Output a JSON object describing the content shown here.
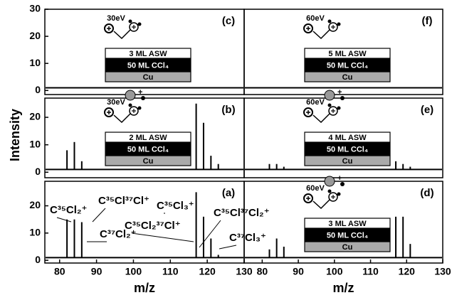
{
  "chart_data": [
    {
      "type": "spectrum",
      "panel_label": "(c)",
      "energy": "30eV",
      "layers": [
        "3 ML ASW",
        "50 ML CCl₄",
        "Cu"
      ],
      "xlim": [
        76,
        130
      ],
      "ylim": [
        -1.5,
        30
      ],
      "yticks": [
        0,
        10,
        20,
        30
      ],
      "baseline": 1,
      "series": [
        {
          "color": "#000000",
          "x": [],
          "values": []
        }
      ]
    },
    {
      "type": "spectrum",
      "panel_label": "(f)",
      "energy": "60eV",
      "layers": [
        "5 ML ASW",
        "50 ML CCl₄",
        "Cu"
      ],
      "xlim": [
        75,
        130
      ],
      "ylim": [
        -1.5,
        30
      ],
      "baseline": 1,
      "series": [
        {
          "color": "#000000",
          "x": [],
          "values": []
        }
      ]
    },
    {
      "type": "spectrum",
      "panel_label": "(b)",
      "energy": "30eV",
      "layers": [
        "2 ML ASW",
        "50 ML CCl₄",
        "Cu"
      ],
      "ylabel": "Intensity",
      "xlim": [
        76,
        130
      ],
      "ylim": [
        -2,
        27
      ],
      "yticks": [
        0,
        10,
        20
      ],
      "baseline": 1,
      "series": [
        {
          "color": "#000000",
          "x": [
            82,
            84,
            86,
            117,
            119,
            121,
            123
          ],
          "values": [
            8,
            11,
            4,
            25,
            18,
            6,
            3
          ]
        }
      ]
    },
    {
      "type": "spectrum",
      "panel_label": "(e)",
      "energy": "60eV",
      "layers": [
        "4 ML ASW",
        "50 ML CCl₄",
        "Cu"
      ],
      "xlim": [
        75,
        130
      ],
      "ylim": [
        -2,
        27
      ],
      "baseline": 1,
      "series": [
        {
          "color": "#000000",
          "x": [
            82,
            84,
            86,
            117,
            119,
            121
          ],
          "values": [
            3,
            3,
            2,
            4,
            3,
            2
          ]
        }
      ]
    },
    {
      "type": "spectrum",
      "panel_label": "(a)",
      "xlabel": "m/z",
      "xlim": [
        76,
        130
      ],
      "xticks": [
        80,
        90,
        100,
        110,
        120,
        130
      ],
      "ylim": [
        -1,
        29
      ],
      "yticks": [
        0,
        10,
        20
      ],
      "baseline": 1,
      "annotations": [
        "C³⁵Cl₂⁺",
        "C³⁵Cl³⁷Cl⁺",
        "C³⁵Cl₃⁺",
        "C³⁷Cl₂⁺",
        "C³⁵Cl₂³⁷Cl⁺",
        "C³⁵Cl³⁷Cl₂⁺",
        "C³⁷Cl₃⁺"
      ],
      "series": [
        {
          "color": "#000000",
          "x": [
            82,
            84,
            86,
            117,
            119,
            121,
            123
          ],
          "values": [
            15,
            15,
            14,
            25,
            16,
            8,
            2
          ]
        }
      ]
    },
    {
      "type": "spectrum",
      "panel_label": "(d)",
      "energy": "60eV",
      "layers": [
        "3 ML ASW",
        "50 ML CCl₄",
        "Cu"
      ],
      "xlabel": "m/z",
      "xlim": [
        75,
        130
      ],
      "xticks": [
        80,
        90,
        100,
        110,
        120,
        130
      ],
      "ylim": [
        -1,
        29
      ],
      "baseline": 1,
      "series": [
        {
          "color": "#000000",
          "x": [
            82,
            84,
            86,
            117,
            119,
            121
          ],
          "values": [
            4,
            8,
            5,
            16,
            16,
            6
          ]
        }
      ]
    }
  ]
}
